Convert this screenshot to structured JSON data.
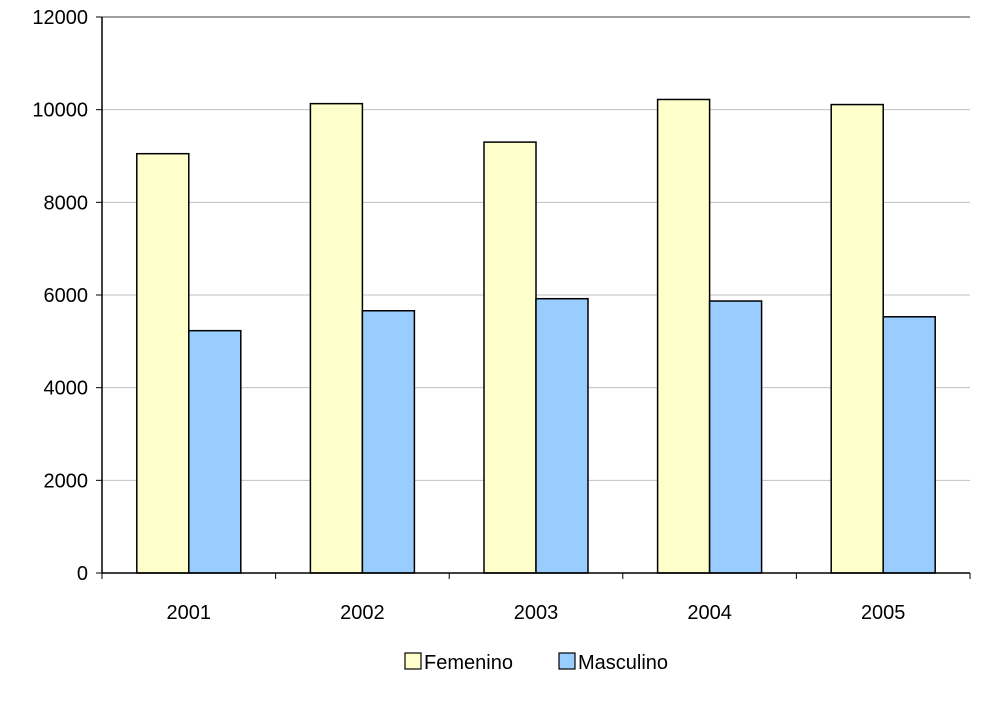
{
  "chart_data": {
    "type": "bar",
    "categories": [
      "2001",
      "2002",
      "2003",
      "2004",
      "2005"
    ],
    "series": [
      {
        "name": "Femenino",
        "values": [
          9050,
          10130,
          9300,
          10220,
          10110
        ],
        "color": "#FFFFCC"
      },
      {
        "name": "Masculino",
        "values": [
          5230,
          5660,
          5920,
          5870,
          5530
        ],
        "color": "#99CCFF"
      }
    ],
    "ylim": [
      0,
      12000
    ],
    "yticks": [
      "0",
      "2000",
      "4000",
      "6000",
      "8000",
      "10000",
      "12000"
    ],
    "grid": true,
    "legend_position": "bottom",
    "title": "",
    "xlabel": "",
    "ylabel": ""
  }
}
